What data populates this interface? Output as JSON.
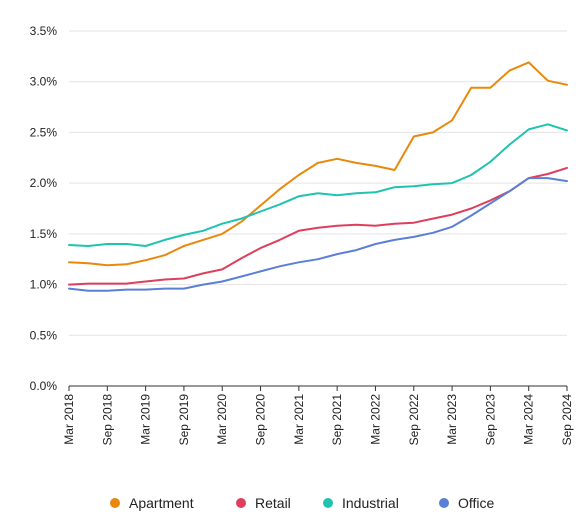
{
  "chart_data": {
    "type": "line",
    "x": [
      "Mar 2018",
      "Jun 2018",
      "Sep 2018",
      "Dec 2018",
      "Mar 2019",
      "Jun 2019",
      "Sep 2019",
      "Dec 2019",
      "Mar 2020",
      "Jun 2020",
      "Sep 2020",
      "Dec 2020",
      "Mar 2021",
      "Jun 2021",
      "Sep 2021",
      "Dec 2021",
      "Mar 2022",
      "Jun 2022",
      "Sep 2022",
      "Dec 2022",
      "Mar 2023",
      "Jun 2023",
      "Sep 2023",
      "Dec 2023",
      "Mar 2024",
      "Jun 2024",
      "Sep 2024"
    ],
    "x_tick_labels": [
      "Mar 2018",
      "Sep 2018",
      "Mar 2019",
      "Sep 2019",
      "Mar 2020",
      "Sep 2020",
      "Mar 2021",
      "Sep 2021",
      "Mar 2022",
      "Sep 2022",
      "Mar 2023",
      "Sep 2023",
      "Mar 2024",
      "Sep 2024"
    ],
    "y_tick_labels": [
      "0.0%",
      "0.5%",
      "1.0%",
      "1.5%",
      "2.0%",
      "2.5%",
      "3.0%",
      "3.5%"
    ],
    "ylim": [
      0,
      3.5
    ],
    "yunit": "%",
    "grid": "horizontal",
    "legend_position": "bottom",
    "series": [
      {
        "name": "Apartment",
        "color": "#E8890C",
        "values": [
          1.22,
          1.21,
          1.19,
          1.2,
          1.24,
          1.29,
          1.38,
          1.44,
          1.5,
          1.62,
          1.78,
          1.94,
          2.08,
          2.2,
          2.24,
          2.2,
          2.17,
          2.13,
          2.46,
          2.5,
          2.62,
          2.94,
          2.94,
          3.11,
          3.19,
          3.01,
          2.97
        ]
      },
      {
        "name": "Retail",
        "color": "#DD3F5D",
        "values": [
          1.0,
          1.01,
          1.01,
          1.01,
          1.03,
          1.05,
          1.06,
          1.11,
          1.15,
          1.26,
          1.36,
          1.44,
          1.53,
          1.56,
          1.58,
          1.59,
          1.58,
          1.6,
          1.61,
          1.65,
          1.69,
          1.75,
          1.83,
          1.92,
          2.05,
          2.09,
          2.15
        ]
      },
      {
        "name": "Industrial",
        "color": "#1FC3B0",
        "values": [
          1.39,
          1.38,
          1.4,
          1.4,
          1.38,
          1.44,
          1.49,
          1.53,
          1.6,
          1.65,
          1.72,
          1.79,
          1.87,
          1.9,
          1.88,
          1.9,
          1.91,
          1.96,
          1.97,
          1.99,
          2.0,
          2.08,
          2.21,
          2.38,
          2.53,
          2.58,
          2.52
        ]
      },
      {
        "name": "Office",
        "color": "#5A7FD6",
        "values": [
          0.96,
          0.94,
          0.94,
          0.95,
          0.95,
          0.96,
          0.96,
          1.0,
          1.03,
          1.08,
          1.13,
          1.18,
          1.22,
          1.25,
          1.3,
          1.34,
          1.4,
          1.44,
          1.47,
          1.51,
          1.57,
          1.68,
          1.8,
          1.92,
          2.05,
          2.05,
          2.02
        ]
      }
    ]
  }
}
